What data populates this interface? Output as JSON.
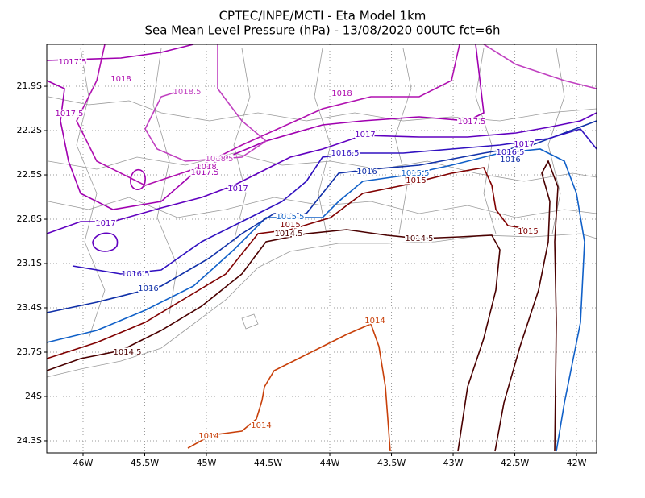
{
  "title": [
    "CPTEC/INPE/MCTI -  Eta Model 1km",
    "Sea Mean Level Pressure (hPa) - 13/08/2020 00UTC fct=6h"
  ],
  "map": {
    "xlim": [
      -46.294,
      -41.837
    ],
    "ylim": [
      -24.382,
      -21.616
    ],
    "grid": true,
    "xticks": [
      {
        "value": -46,
        "label": "46W"
      },
      {
        "value": -45.5,
        "label": "45.5W"
      },
      {
        "value": -45,
        "label": "45W"
      },
      {
        "value": -44.5,
        "label": "44.5W"
      },
      {
        "value": -44,
        "label": "44W"
      },
      {
        "value": -43.5,
        "label": "43.5W"
      },
      {
        "value": -43,
        "label": "43W"
      },
      {
        "value": -42.5,
        "label": "42.5W"
      },
      {
        "value": -42,
        "label": "42W"
      }
    ],
    "yticks": [
      {
        "value": -21.9,
        "label": "21.9S"
      },
      {
        "value": -22.2,
        "label": "22.2S"
      },
      {
        "value": -22.5,
        "label": "22.5S"
      },
      {
        "value": -22.8,
        "label": "22.8S"
      },
      {
        "value": -23.1,
        "label": "23.1S"
      },
      {
        "value": -23.4,
        "label": "23.4S"
      },
      {
        "value": -23.7,
        "label": "23.7S"
      },
      {
        "value": -24,
        "label": "24S"
      },
      {
        "value": -24.3,
        "label": "24.3S"
      }
    ],
    "contours": [
      {
        "level": 1014,
        "color": "#c8400a"
      },
      {
        "level": 1014.5,
        "color": "#4a0000"
      },
      {
        "level": 1015,
        "color": "#800000"
      },
      {
        "level": 1015.5,
        "color": "#1060c8"
      },
      {
        "level": 1016,
        "color": "#1030a8"
      },
      {
        "level": 1016.5,
        "color": "#3010c0"
      },
      {
        "level": 1017,
        "color": "#6000c0"
      },
      {
        "level": 1017.5,
        "color": "#a000b0"
      },
      {
        "level": 1018,
        "color": "#b010b0"
      },
      {
        "level": 1018.5,
        "color": "#c040c0"
      }
    ]
  }
}
